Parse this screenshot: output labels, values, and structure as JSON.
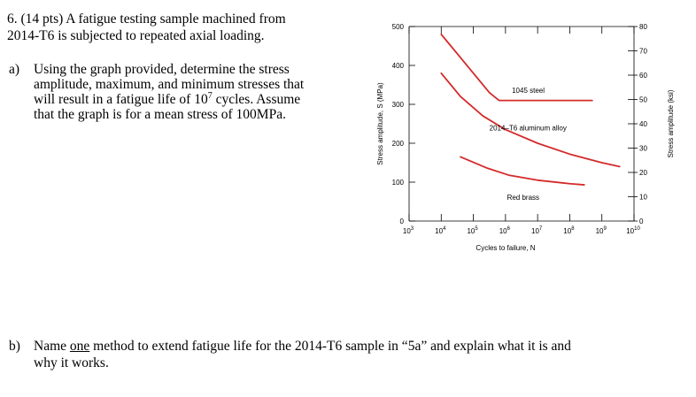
{
  "question": {
    "title_line1": "6. (14 pts) A fatigue testing sample machined from",
    "title_line2": "2014-T6 is subjected to repeated axial loading."
  },
  "part_a": {
    "label": "a)",
    "line1": "Using the graph provided, determine the stress",
    "line2": "amplitude, maximum, and minimum stresses that",
    "line3_pre": "will result in a fatigue life of 10",
    "line3_sup": "7",
    "line3_post": " cycles.  Assume",
    "line4": "that the graph is for a mean stress of 100MPa."
  },
  "part_b": {
    "label": "b)",
    "line1_pre": "Name ",
    "line1_underlined": "one",
    "line1_post": " method to extend fatigue life for the 2014-T6 sample in “5a” and explain what it is and",
    "line2": "why it works."
  },
  "chart_data": {
    "type": "line",
    "xlabel": "Cycles to failure, N",
    "ylabel": "Stress amplitude, S (MPa)",
    "y2label": "Stress amplitude (ksi)",
    "xscale": "log",
    "xlim_exp": [
      3,
      10
    ],
    "ylim": [
      0,
      500
    ],
    "y2lim": [
      0,
      80
    ],
    "x_ticks": [
      {
        "base": "10",
        "exp": "3"
      },
      {
        "base": "10",
        "exp": "4"
      },
      {
        "base": "10",
        "exp": "5"
      },
      {
        "base": "10",
        "exp": "6"
      },
      {
        "base": "10",
        "exp": "7"
      },
      {
        "base": "10",
        "exp": "8"
      },
      {
        "base": "10",
        "exp": "9"
      },
      {
        "base": "10",
        "exp": "10"
      }
    ],
    "y_ticks": [
      "0",
      "100",
      "200",
      "300",
      "400",
      "500"
    ],
    "y2_ticks": [
      "0",
      "10",
      "20",
      "30",
      "40",
      "50",
      "60",
      "70",
      "80"
    ],
    "series": [
      {
        "name": "1045 steel",
        "color": "#d42a2a",
        "points": [
          [
            4.0,
            480
          ],
          [
            4.6,
            420
          ],
          [
            5.1,
            370
          ],
          [
            5.5,
            330
          ],
          [
            5.8,
            310
          ],
          [
            6.5,
            310
          ],
          [
            7.5,
            310
          ],
          [
            8.7,
            310
          ]
        ]
      },
      {
        "name": "2014–T6 aluminum alloy",
        "color": "#d42a2a",
        "points": [
          [
            4.0,
            380
          ],
          [
            4.6,
            320
          ],
          [
            5.3,
            270
          ],
          [
            6.0,
            235
          ],
          [
            7.0,
            200
          ],
          [
            8.0,
            172
          ],
          [
            9.0,
            150
          ],
          [
            9.55,
            140
          ]
        ]
      },
      {
        "name": "Red brass",
        "color": "#d42a2a",
        "points": [
          [
            4.6,
            165
          ],
          [
            5.4,
            137
          ],
          [
            6.1,
            118
          ],
          [
            7.0,
            105
          ],
          [
            8.0,
            96
          ],
          [
            8.45,
            93
          ]
        ]
      }
    ]
  }
}
